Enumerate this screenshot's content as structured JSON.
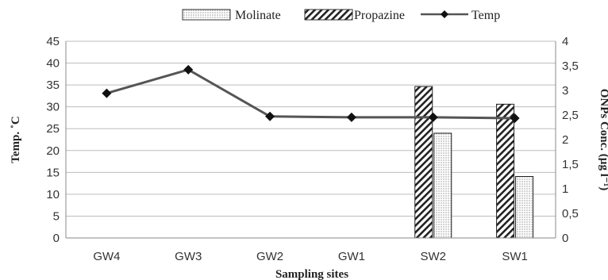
{
  "chart_data": {
    "type": "bar",
    "categories": [
      "GW4",
      "GW3",
      "GW2",
      "GW1",
      "SW2",
      "SW1"
    ],
    "series": [
      {
        "name": "Molinate",
        "kind": "bar",
        "axis": "right",
        "pattern": "dotted",
        "values": [
          0,
          0,
          0,
          0,
          2.13,
          1.25
        ]
      },
      {
        "name": "Propazine",
        "kind": "bar",
        "axis": "right",
        "pattern": "diagonal-hatch",
        "values": [
          0,
          0,
          0,
          0,
          3.08,
          2.72
        ]
      },
      {
        "name": "Temp",
        "kind": "line",
        "axis": "left",
        "marker": "diamond",
        "values": [
          33.1,
          38.5,
          27.8,
          27.6,
          27.6,
          27.4
        ]
      }
    ],
    "xlabel": "Sampling sites",
    "ylabel_left": "Temp. ˚C",
    "ylabel_right": "ONPs Conc. (µg l⁻¹)",
    "ylim_left": [
      0,
      45
    ],
    "ylim_right": [
      0,
      4
    ],
    "yticks_left": [
      "0",
      "5",
      "10",
      "15",
      "20",
      "25",
      "30",
      "35",
      "40",
      "45"
    ],
    "yticks_right": [
      "0",
      "0,5",
      "1",
      "1,5",
      "2",
      "2,5",
      "3",
      "3,5",
      "4"
    ],
    "grid": true,
    "legend_position": "top",
    "colors": {
      "line": "#555555",
      "marker": "#111111",
      "bar_stroke": "#222222",
      "grid": "#bdbdbd"
    }
  }
}
